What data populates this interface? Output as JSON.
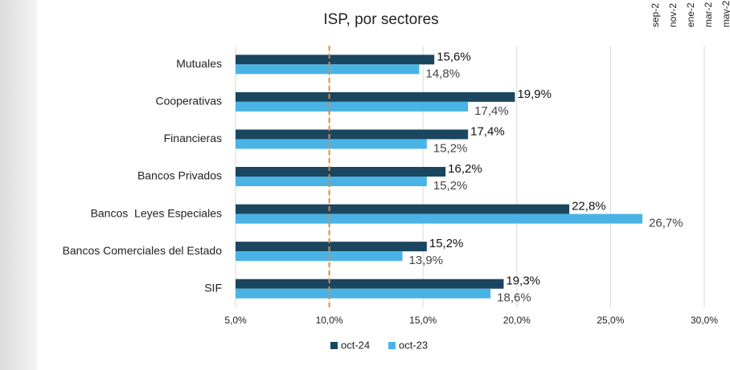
{
  "chart_data": {
    "type": "hbar",
    "title": "ISP, por sectores",
    "categories": [
      "Mutuales",
      "Cooperativas",
      "Financieras",
      "Bancos Privados",
      "Bancos  Leyes Especiales",
      "Bancos Comerciales del Estado",
      "SIF"
    ],
    "series": [
      {
        "name": "oct-24",
        "color": "#1b4660",
        "values": [
          15.6,
          19.9,
          17.4,
          16.2,
          22.8,
          15.2,
          19.3
        ],
        "value_labels": [
          "15,6%",
          "19,9%",
          "17,4%",
          "16,2%",
          "22,8%",
          "15,2%",
          "19,3%"
        ]
      },
      {
        "name": "oct-23",
        "color": "#4ab3e6",
        "values": [
          14.8,
          17.4,
          15.2,
          15.2,
          26.7,
          13.9,
          18.6
        ],
        "value_labels": [
          "14,8%",
          "17,4%",
          "15,2%",
          "15,2%",
          "26,7%",
          "13,9%",
          "18,6%"
        ]
      }
    ],
    "xlim": [
      5,
      30
    ],
    "xticks": [
      {
        "value": 5,
        "label": "5,0%"
      },
      {
        "value": 10,
        "label": "10,0%"
      },
      {
        "value": 15,
        "label": "15,0%"
      },
      {
        "value": 20,
        "label": "20,0%"
      },
      {
        "value": 25,
        "label": "25,0%"
      },
      {
        "value": 30,
        "label": "30,0%"
      }
    ],
    "grid": true,
    "reference_line": {
      "value": 10,
      "color": "#e08a3c"
    },
    "legend": "bottom",
    "other_labels": [
      "sep-2",
      "nov-2",
      "ene-2",
      "mar-2",
      "may-2"
    ]
  }
}
